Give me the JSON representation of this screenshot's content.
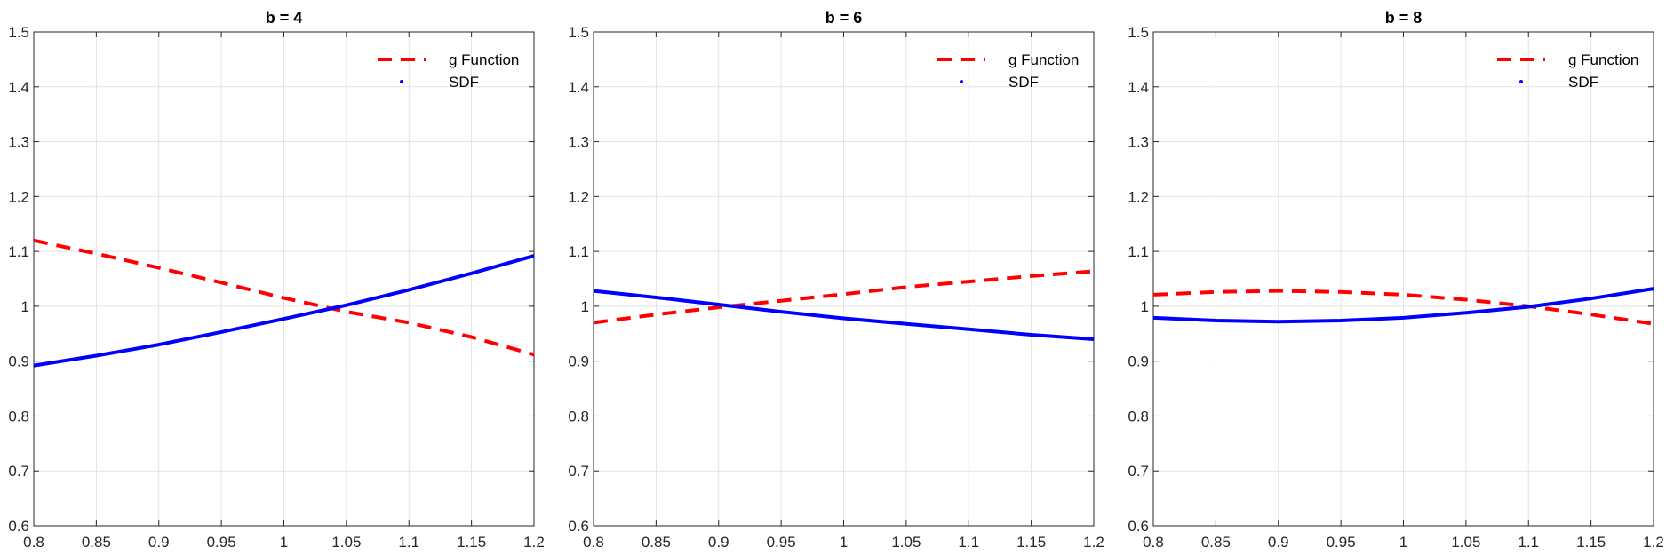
{
  "colors": {
    "g_function": "#ff0000",
    "sdf": "#0000ff",
    "grid": "#e3e3e3",
    "axes": "#262626"
  },
  "chart_data": [
    {
      "type": "line",
      "title": "b = 4",
      "xlim": [
        0.8,
        1.2
      ],
      "ylim": [
        0.6,
        1.5
      ],
      "xticks": [
        "0.8",
        "0.85",
        "0.9",
        "0.95",
        "1",
        "1.05",
        "1.1",
        "1.15",
        "1.2"
      ],
      "yticks": [
        "0.6",
        "0.7",
        "0.8",
        "0.9",
        "1",
        "1.1",
        "1.2",
        "1.3",
        "1.4",
        "1.5"
      ],
      "grid": true,
      "legend_position": "top-right",
      "series": [
        {
          "name": "g Function",
          "style": "dashed",
          "x": [
            0.8,
            0.85,
            0.9,
            0.95,
            1.0,
            1.05,
            1.1,
            1.15,
            1.2
          ],
          "y": [
            1.12,
            1.096,
            1.07,
            1.043,
            1.015,
            0.99,
            0.97,
            0.944,
            0.912
          ]
        },
        {
          "name": "SDF",
          "style": "solid",
          "x": [
            0.8,
            0.85,
            0.9,
            0.95,
            1.0,
            1.05,
            1.1,
            1.15,
            1.2
          ],
          "y": [
            0.892,
            0.91,
            0.93,
            0.953,
            0.977,
            1.002,
            1.03,
            1.06,
            1.092
          ]
        }
      ]
    },
    {
      "type": "line",
      "title": "b = 6",
      "xlim": [
        0.8,
        1.2
      ],
      "ylim": [
        0.6,
        1.5
      ],
      "xticks": [
        "0.8",
        "0.85",
        "0.9",
        "0.95",
        "1",
        "1.05",
        "1.1",
        "1.15",
        "1.2"
      ],
      "yticks": [
        "0.6",
        "0.7",
        "0.8",
        "0.9",
        "1",
        "1.1",
        "1.2",
        "1.3",
        "1.4",
        "1.5"
      ],
      "grid": true,
      "legend_position": "top-right",
      "series": [
        {
          "name": "g Function",
          "style": "dashed",
          "x": [
            0.8,
            0.85,
            0.9,
            0.95,
            1.0,
            1.05,
            1.1,
            1.15,
            1.2
          ],
          "y": [
            0.97,
            0.985,
            0.998,
            1.01,
            1.022,
            1.035,
            1.045,
            1.055,
            1.064
          ]
        },
        {
          "name": "SDF",
          "style": "solid",
          "x": [
            0.8,
            0.85,
            0.9,
            0.95,
            1.0,
            1.05,
            1.1,
            1.15,
            1.2
          ],
          "y": [
            1.028,
            1.016,
            1.003,
            0.99,
            0.978,
            0.968,
            0.958,
            0.948,
            0.94
          ]
        }
      ]
    },
    {
      "type": "line",
      "title": "b = 8",
      "xlim": [
        0.8,
        1.2
      ],
      "ylim": [
        0.6,
        1.5
      ],
      "xticks": [
        "0.8",
        "0.85",
        "0.9",
        "0.95",
        "1",
        "1.05",
        "1.1",
        "1.15",
        "1.2"
      ],
      "yticks": [
        "0.6",
        "0.7",
        "0.8",
        "0.9",
        "1",
        "1.1",
        "1.2",
        "1.3",
        "1.4",
        "1.5"
      ],
      "grid": true,
      "legend_position": "top-right",
      "series": [
        {
          "name": "g Function",
          "style": "dashed",
          "x": [
            0.8,
            0.85,
            0.9,
            0.95,
            1.0,
            1.05,
            1.1,
            1.15,
            1.2
          ],
          "y": [
            1.021,
            1.026,
            1.028,
            1.026,
            1.021,
            1.012,
            1.0,
            0.985,
            0.968
          ]
        },
        {
          "name": "SDF",
          "style": "solid",
          "x": [
            0.8,
            0.85,
            0.9,
            0.95,
            1.0,
            1.05,
            1.1,
            1.15,
            1.2
          ],
          "y": [
            0.979,
            0.974,
            0.972,
            0.974,
            0.979,
            0.988,
            0.999,
            1.014,
            1.032
          ]
        }
      ]
    }
  ]
}
